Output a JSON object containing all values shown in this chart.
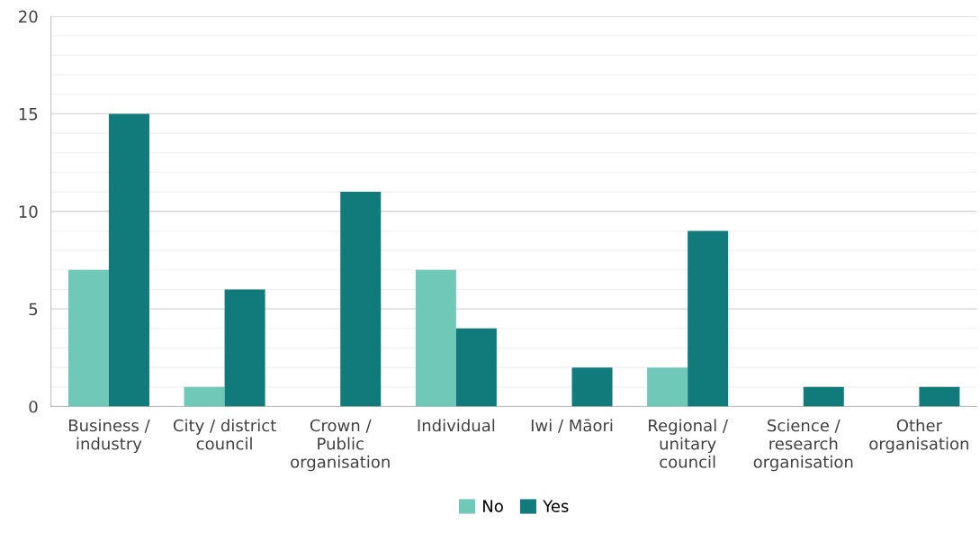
{
  "chart_data": {
    "type": "bar",
    "categories": [
      "Business /\nindustry",
      "City / district\ncouncil",
      "Crown /\nPublic\norganisation",
      "Individual",
      "Iwi / Māori",
      "Regional /\nunitary\ncouncil",
      "Science /\nresearch\norganisation",
      "Other\norganisation"
    ],
    "series": [
      {
        "name": "No",
        "color": "#70c8b8",
        "values": [
          7,
          1,
          0,
          7,
          0,
          2,
          0,
          0
        ]
      },
      {
        "name": "Yes",
        "color": "#117a7a",
        "values": [
          15,
          6,
          11,
          4,
          2,
          9,
          1,
          1
        ]
      }
    ],
    "ylim": [
      0,
      20
    ],
    "yticks": [
      0,
      5,
      10,
      15,
      20
    ],
    "grid": "y",
    "legend": "bottom"
  }
}
